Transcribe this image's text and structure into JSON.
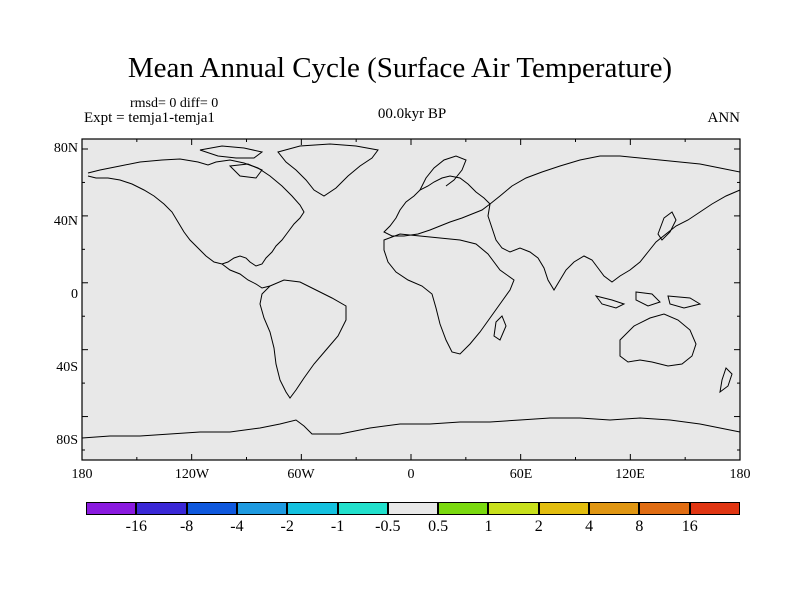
{
  "map": {
    "title": "Mean Annual Cycle (Surface Air Temperature)",
    "stats_line1": "rmsd= 0 diff= 0",
    "stats_line2": "Expt = temja1-temja1",
    "period": "00.0kyr BP",
    "season": "ANN",
    "fill_color": "#e8e8e8",
    "lat_labels": [
      "80N",
      "40N",
      "0",
      "40S",
      "80S"
    ],
    "lon_labels": [
      "180",
      "120W",
      "60W",
      "0",
      "60E",
      "120E",
      "180"
    ]
  },
  "colorbar": {
    "colors": [
      "#8a1adf",
      "#3a28d6",
      "#0f58dd",
      "#1e9ae0",
      "#14c1df",
      "#21e0cc",
      "#e8e8e8",
      "#7ad90f",
      "#c8e01c",
      "#e2bd0f",
      "#e09612",
      "#e06c12",
      "#e03512"
    ],
    "labels": [
      "-16",
      "-8",
      "-4",
      "-2",
      "-1",
      "-0.5",
      "0.5",
      "1",
      "2",
      "4",
      "8",
      "16"
    ]
  }
}
